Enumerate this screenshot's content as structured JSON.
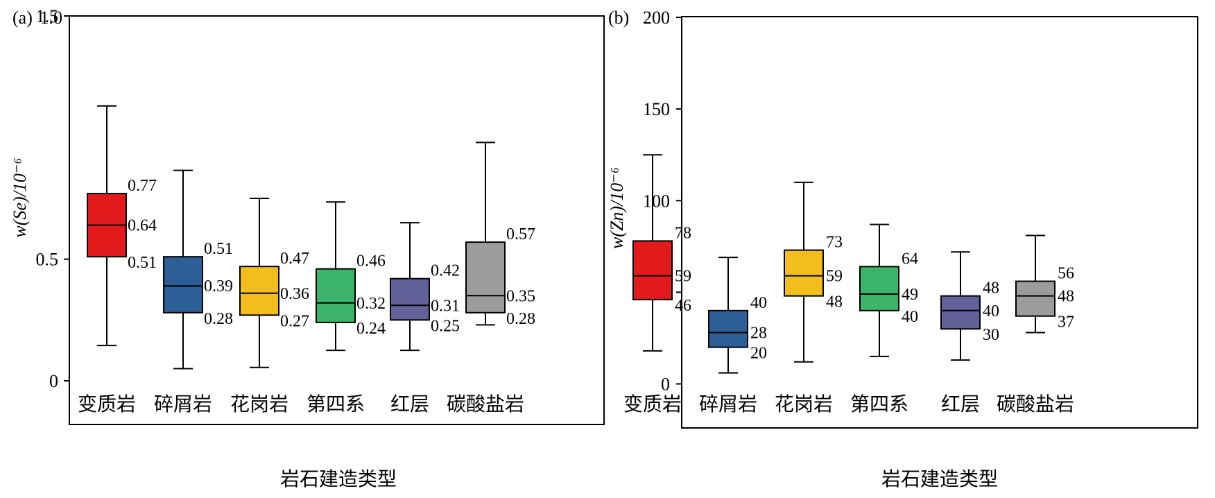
{
  "chart_data": [
    {
      "type": "box",
      "panel_label": "(a)",
      "ylabel": "w(Se)/10⁻⁶",
      "xlabel": "岩石建造类型",
      "ylim": [
        0,
        1.5
      ],
      "yticks": [
        0,
        0.5,
        1.5
      ],
      "ytick_labels": [
        "0",
        "0.5",
        "1.5"
      ],
      "top_label": "1.0",
      "categories": [
        "变质岩",
        "碎屑岩",
        "花岗岩",
        "第四系",
        "红层",
        "碳酸盐岩"
      ],
      "colors": [
        "#e31a1c",
        "#2c5f95",
        "#f2bd1d",
        "#3cb56b",
        "#63619a",
        "#9c9c9c"
      ],
      "boxes": [
        {
          "min": 0.145,
          "q1": 0.51,
          "median": 0.64,
          "q3": 0.77,
          "max": 1.13,
          "labels": [
            "0.77",
            "0.64",
            "0.51"
          ]
        },
        {
          "min": 0.05,
          "q1": 0.28,
          "median": 0.39,
          "q3": 0.51,
          "max": 0.865,
          "labels": [
            "0.51",
            "0.39",
            "0.28"
          ]
        },
        {
          "min": 0.055,
          "q1": 0.27,
          "median": 0.36,
          "q3": 0.47,
          "max": 0.75,
          "labels": [
            "0.47",
            "0.36",
            "0.27"
          ]
        },
        {
          "min": 0.125,
          "q1": 0.24,
          "median": 0.32,
          "q3": 0.46,
          "max": 0.735,
          "labels": [
            "0.46",
            "0.32",
            "0.24"
          ]
        },
        {
          "min": 0.125,
          "q1": 0.25,
          "median": 0.31,
          "q3": 0.42,
          "max": 0.65,
          "labels": [
            "0.42",
            "0.31",
            "0.25"
          ]
        },
        {
          "min": 0.23,
          "q1": 0.28,
          "median": 0.35,
          "q3": 0.57,
          "max": 0.98,
          "labels": [
            "0.57",
            "0.35",
            "0.28"
          ]
        }
      ]
    },
    {
      "type": "box",
      "panel_label": "(b)",
      "ylabel": "w(Zn)/10⁻⁶",
      "xlabel": "岩石建造类型",
      "ylim": [
        0,
        200
      ],
      "yticks": [
        0,
        50,
        100,
        150,
        200
      ],
      "ytick_labels": [
        "0",
        "50",
        "100",
        "150",
        "200"
      ],
      "categories": [
        "变质岩",
        "碎屑岩",
        "花岗岩",
        "第四系",
        "红层",
        "碳酸盐岩"
      ],
      "colors": [
        "#e31a1c",
        "#2c5f95",
        "#f2bd1d",
        "#3cb56b",
        "#63619a",
        "#9c9c9c"
      ],
      "boxes": [
        {
          "min": 18,
          "q1": 46,
          "median": 59,
          "q3": 78,
          "max": 125,
          "labels": [
            "78",
            "59",
            "46"
          ]
        },
        {
          "min": 6,
          "q1": 20,
          "median": 28,
          "q3": 40,
          "max": 69,
          "labels": [
            "40",
            "28",
            "20"
          ]
        },
        {
          "min": 12,
          "q1": 48,
          "median": 59,
          "q3": 73,
          "max": 110,
          "labels": [
            "73",
            "59",
            "48"
          ]
        },
        {
          "min": 15,
          "q1": 40,
          "median": 49,
          "q3": 64,
          "max": 87,
          "labels": [
            "64",
            "49",
            "40"
          ]
        },
        {
          "min": 13,
          "q1": 30,
          "median": 40,
          "q3": 48,
          "max": 72,
          "labels": [
            "48",
            "40",
            "30"
          ]
        },
        {
          "min": 28,
          "q1": 37,
          "median": 48,
          "q3": 56,
          "max": 81,
          "labels": [
            "56",
            "48",
            "37"
          ]
        }
      ]
    }
  ]
}
